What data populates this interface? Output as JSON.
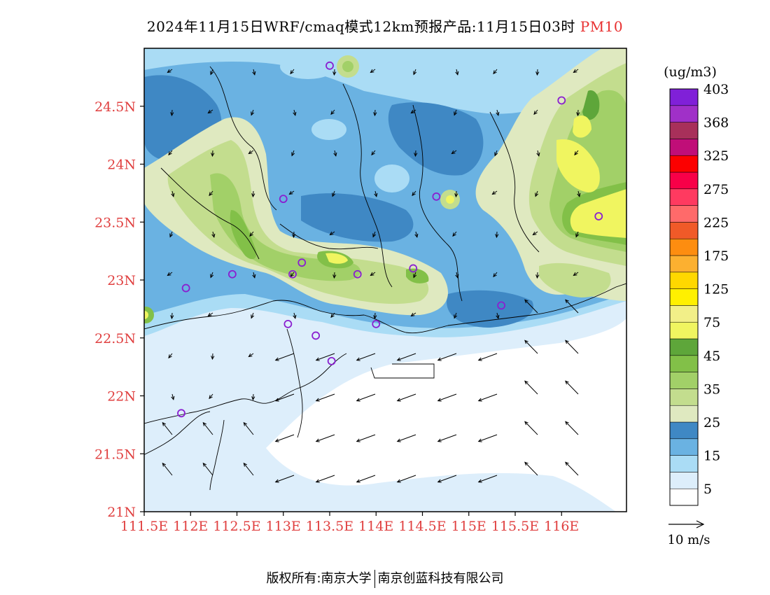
{
  "title": {
    "main": "2024年11月15日WRF/cmaq模式12km预报产品:11月15日03时",
    "variable": "PM10"
  },
  "map": {
    "lat_range": [
      21.0,
      25.0
    ],
    "lon_range": [
      111.5,
      116.7
    ],
    "lat_ticks": [
      "24.5N",
      "24N",
      "23.5N",
      "23N",
      "22.5N",
      "22N",
      "21.5N",
      "21N"
    ],
    "lon_ticks": [
      "111.5E",
      "112E",
      "112.5E",
      "113E",
      "113.5E",
      "114E",
      "114.5E",
      "115E",
      "115.5E",
      "116E"
    ],
    "wind_reference": "10 m/s",
    "stations": [
      {
        "lon": 113.5,
        "lat": 24.85
      },
      {
        "lon": 113.0,
        "lat": 23.7
      },
      {
        "lon": 114.65,
        "lat": 23.72
      },
      {
        "lon": 116.0,
        "lat": 24.55
      },
      {
        "lon": 116.4,
        "lat": 23.55
      },
      {
        "lon": 112.45,
        "lat": 23.05
      },
      {
        "lon": 111.95,
        "lat": 22.93
      },
      {
        "lon": 113.1,
        "lat": 23.05
      },
      {
        "lon": 113.2,
        "lat": 23.15
      },
      {
        "lon": 113.8,
        "lat": 23.05
      },
      {
        "lon": 114.4,
        "lat": 23.1
      },
      {
        "lon": 113.05,
        "lat": 22.62
      },
      {
        "lon": 113.35,
        "lat": 22.52
      },
      {
        "lon": 113.52,
        "lat": 22.3
      },
      {
        "lon": 114.0,
        "lat": 22.62
      },
      {
        "lon": 115.35,
        "lat": 22.78
      },
      {
        "lon": 111.9,
        "lat": 21.85
      }
    ]
  },
  "legend": {
    "unit": "(ug/m3)",
    "colors": [
      "#ffffff",
      "#ddeefb",
      "#aadcf5",
      "#6ab2e2",
      "#3f88c4",
      "#dfe9c0",
      "#c3dd8e",
      "#a2d068",
      "#82c048",
      "#5ea63a",
      "#f0f560",
      "#f2ef88",
      "#fff000",
      "#ffd800",
      "#fcb030",
      "#fd8d10",
      "#f05a28",
      "#ff6a6a",
      "#ff3a60",
      "#f80048",
      "#fc0000",
      "#c00e78",
      "#a8305a",
      "#a030c8",
      "#8020d8"
    ],
    "labels": [
      "5",
      "15",
      "25",
      "35",
      "45",
      "75",
      "125",
      "175",
      "225",
      "275",
      "325",
      "368",
      "403"
    ]
  },
  "copyright": {
    "left": "版权所有:南京大学",
    "right": "南京创蓝科技有限公司"
  }
}
